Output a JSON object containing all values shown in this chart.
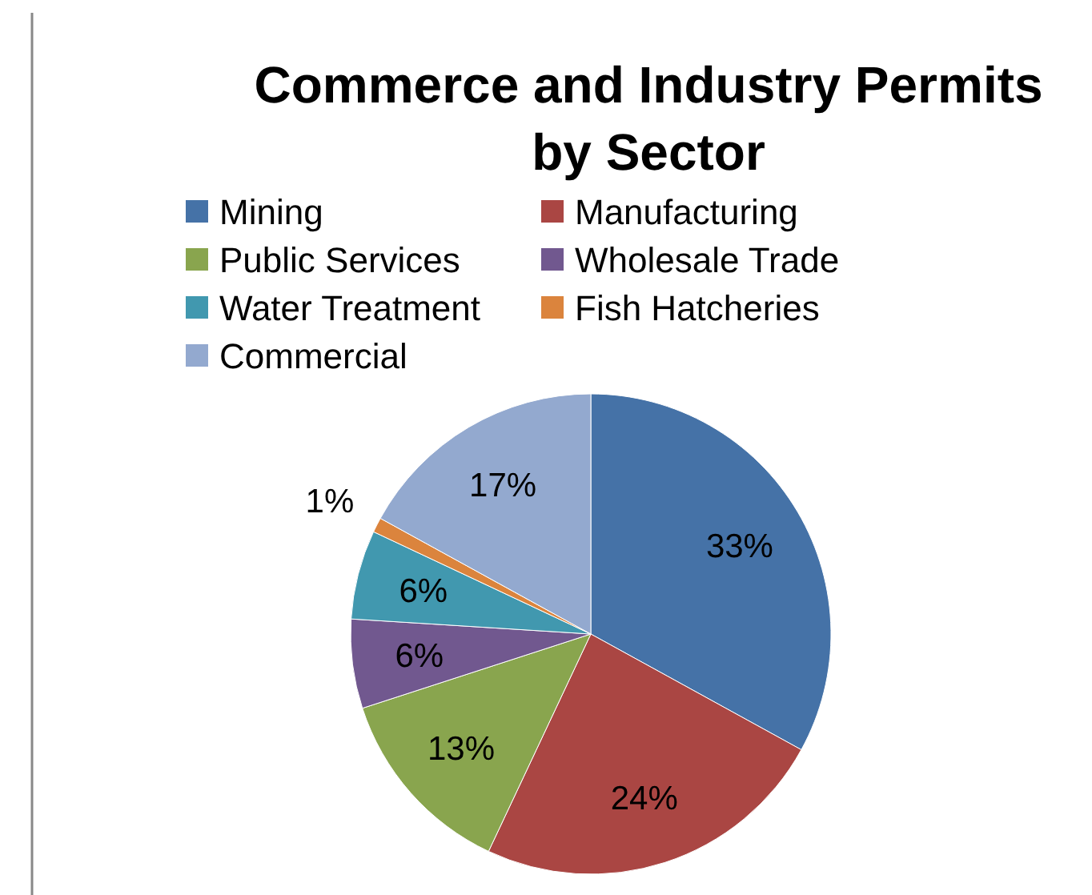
{
  "chart_data": {
    "type": "pie",
    "title": "Commerce and Industry Permits by Sector",
    "categories": [
      "Mining",
      "Manufacturing",
      "Public Services",
      "Wholesale Trade",
      "Water Treatment",
      "Fish Hatcheries",
      "Commercial"
    ],
    "values": [
      33,
      24,
      13,
      6,
      6,
      1,
      17
    ],
    "colors": [
      "#4572a7",
      "#aa4643",
      "#89a54e",
      "#71588f",
      "#4198af",
      "#db843d",
      "#93a9cf"
    ],
    "value_labels": [
      "33%",
      "24%",
      "13%",
      "6%",
      "6%",
      "1%",
      "17%"
    ],
    "legend": "top"
  }
}
